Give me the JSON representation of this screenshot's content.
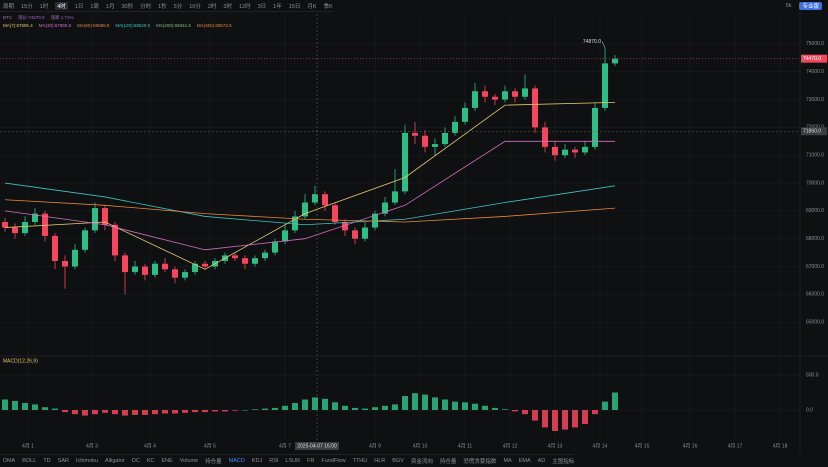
{
  "toolbar": {
    "periods": [
      "周期",
      "15分",
      "1时",
      "4时",
      "1日",
      "1周",
      "1月",
      "30秒",
      "分时",
      "1秒",
      "5分",
      "10分",
      "2时",
      "3时",
      "12时",
      "3日",
      "1年",
      "15日",
      "月K",
      "季K"
    ],
    "right": [
      "5k",
      "专业版"
    ]
  },
  "legend": {
    "row1": [
      "BTC",
      "现价 74470.0",
      "涨跌 1.71%"
    ],
    "row2": [
      "MA(7):67595.4",
      "MA(30):67890.8",
      "MA(90):66589.8",
      "MA(120):68520.9",
      "MA(200):69341.6",
      "MA(365):68573.5"
    ]
  },
  "indicators": [
    "DMA",
    "BOLL",
    "TD",
    "SAR",
    "Ichimoku",
    "Alligator",
    "DC",
    "KC",
    "ENE",
    "Volume",
    "持仓量",
    "MACD",
    "KDJ",
    "RSI",
    "LSUR",
    "FR",
    "FundFlow",
    "TTHU",
    "HLR",
    "BGV",
    "资金流向",
    "持仓量",
    "恐慌贪婪指数",
    "MA",
    "EMA",
    "AD",
    "主图指标"
  ],
  "chart_data": {
    "type": "candlestick",
    "up_color": "#2ebd85",
    "down_color": "#f6465d",
    "open": [
      68600,
      68400,
      68200,
      68600,
      68900,
      68100,
      67200,
      67000,
      67600,
      68300,
      69100,
      68500,
      67400,
      66800,
      67000,
      66700,
      67100,
      66900,
      66600,
      66800,
      67100,
      67000,
      67200,
      67400,
      67300,
      67100,
      67300,
      67500,
      67900,
      68300,
      68800,
      69300,
      69600,
      69200,
      68600,
      68300,
      68000,
      68400,
      68900,
      69300,
      69700,
      71800,
      71700,
      71300,
      71400,
      71800,
      72200,
      72700,
      73300,
      73100,
      73000,
      73300,
      73100,
      73400,
      72000,
      71300,
      71000,
      71200,
      71100,
      71300,
      72700,
      74300
    ],
    "high": [
      68750,
      68550,
      68800,
      69100,
      69000,
      68200,
      67400,
      67800,
      68400,
      69300,
      69200,
      68600,
      67500,
      67200,
      67100,
      67200,
      67300,
      67000,
      66900,
      67200,
      67200,
      67300,
      67500,
      67500,
      67400,
      67400,
      67600,
      68000,
      68500,
      69000,
      69600,
      69900,
      69700,
      69300,
      68700,
      68400,
      68600,
      69000,
      69500,
      70500,
      72100,
      72200,
      71900,
      71600,
      72000,
      72400,
      72900,
      73600,
      73500,
      73200,
      73500,
      73400,
      73900,
      73500,
      72200,
      71500,
      71400,
      71300,
      71500,
      72900,
      74870,
      74600
    ],
    "low": [
      68250,
      68000,
      68100,
      68500,
      67900,
      66900,
      66200,
      66900,
      67500,
      68200,
      68300,
      67200,
      66000,
      66700,
      66500,
      66600,
      66800,
      66400,
      66500,
      66700,
      66900,
      66900,
      67100,
      67200,
      66900,
      67000,
      67200,
      67400,
      67800,
      68200,
      68700,
      69200,
      69000,
      68500,
      68100,
      67800,
      67900,
      68300,
      68800,
      69200,
      69600,
      71400,
      71100,
      71000,
      71300,
      71700,
      72100,
      72600,
      72900,
      72800,
      72900,
      72900,
      73000,
      71800,
      71100,
      70800,
      70900,
      70900,
      71000,
      71200,
      72600,
      74200
    ],
    "close": [
      68400,
      68200,
      68600,
      68900,
      68100,
      67200,
      67000,
      67600,
      68300,
      69100,
      68500,
      67400,
      66800,
      67000,
      66700,
      67100,
      66900,
      66600,
      66800,
      67100,
      67000,
      67200,
      67400,
      67300,
      67100,
      67300,
      67500,
      67900,
      68300,
      68800,
      69300,
      69600,
      69200,
      68600,
      68300,
      68000,
      68400,
      68900,
      69300,
      69700,
      71800,
      71700,
      71300,
      71400,
      71800,
      72200,
      72700,
      73300,
      73100,
      73000,
      73300,
      73100,
      73400,
      72000,
      71300,
      71000,
      71200,
      71100,
      71300,
      72700,
      74300,
      74470
    ],
    "ma_lines": [
      {
        "name": "MA7",
        "color": "#e6c86e",
        "x": [
          0,
          10,
          20,
          30,
          40,
          50,
          61
        ],
        "values": [
          68400,
          68600,
          66900,
          68900,
          70200,
          72800,
          72900
        ]
      },
      {
        "name": "MA30",
        "color": "#d46fc6",
        "x": [
          0,
          10,
          20,
          30,
          40,
          50,
          61
        ],
        "values": [
          69000,
          68500,
          67600,
          68000,
          69200,
          71500,
          71500
        ]
      },
      {
        "name": "MA120",
        "color": "#3cc4c4",
        "x": [
          0,
          10,
          20,
          30,
          40,
          50,
          61
        ],
        "values": [
          70000,
          69500,
          68800,
          68500,
          68700,
          69300,
          69900
        ]
      },
      {
        "name": "MA200",
        "color": "#e8863a",
        "x": [
          0,
          10,
          20,
          30,
          40,
          50,
          61
        ],
        "values": [
          69400,
          69200,
          68900,
          68700,
          68600,
          68800,
          69100
        ]
      }
    ],
    "xlim": [
      -0.5,
      79.5
    ],
    "xticks": [
      {
        "value": 2.3,
        "label": "4月 1"
      },
      {
        "value": 8.7,
        "label": "4月 3"
      },
      {
        "value": 14.5,
        "label": "4月 4"
      },
      {
        "value": 20.5,
        "label": "4月 5"
      },
      {
        "value": 28,
        "label": "4月 7"
      },
      {
        "value": 37,
        "label": "4月 9"
      },
      {
        "value": 41.5,
        "label": "4月 10"
      },
      {
        "value": 46,
        "label": "4月 11"
      },
      {
        "value": 50.5,
        "label": "4月 12"
      },
      {
        "value": 55,
        "label": "4月 13"
      },
      {
        "value": 59.5,
        "label": "4月 14"
      },
      {
        "value": 63.7,
        "label": "4月 15"
      },
      {
        "value": 68.5,
        "label": "4月 16"
      },
      {
        "value": 73,
        "label": "4月 17"
      },
      {
        "value": 77.5,
        "label": "4月 18"
      }
    ],
    "ylim": [
      64000,
      75500
    ],
    "yticks": [
      {
        "value": 65000,
        "label": "65000.0"
      },
      {
        "value": 66000,
        "label": "66000.0"
      },
      {
        "value": 67000,
        "label": "67000.0"
      },
      {
        "value": 68000,
        "label": "68000.0"
      },
      {
        "value": 69000,
        "label": "69000.0"
      },
      {
        "value": 70000,
        "label": "70000.0"
      },
      {
        "value": 71000,
        "label": "71000.0"
      },
      {
        "value": 72000,
        "label": "72000.0"
      },
      {
        "value": 73000,
        "label": "73000.0"
      },
      {
        "value": 74000,
        "label": "74000.0"
      },
      {
        "value": 75000,
        "label": "75000.0"
      }
    ],
    "high_label": {
      "value": 74870,
      "label": "74870.0"
    },
    "price_marker": {
      "value": 74470,
      "label": "74470.0"
    },
    "crosshair": {
      "x": 31.2,
      "x_label": "2025-04-07 16:00",
      "y": 71860,
      "y_label": "71860.0"
    },
    "macd": {
      "title": "MACD(12,26,9)",
      "ylim": [
        -400,
        600
      ],
      "yticks": [
        {
          "value": 0,
          "label": "0.0"
        },
        {
          "value": 500,
          "label": "500.0"
        }
      ],
      "values": [
        150,
        130,
        100,
        80,
        40,
        20,
        -30,
        -60,
        -80,
        -60,
        -40,
        -60,
        -80,
        -70,
        -70,
        -60,
        -50,
        -50,
        -40,
        -30,
        -30,
        -20,
        -20,
        -10,
        0,
        10,
        20,
        30,
        60,
        100,
        150,
        180,
        160,
        110,
        60,
        30,
        20,
        40,
        60,
        80,
        200,
        240,
        220,
        180,
        150,
        120,
        110,
        90,
        60,
        30,
        10,
        -20,
        -60,
        -150,
        -250,
        -300,
        -280,
        -250,
        -200,
        -60,
        120,
        250
      ]
    }
  }
}
